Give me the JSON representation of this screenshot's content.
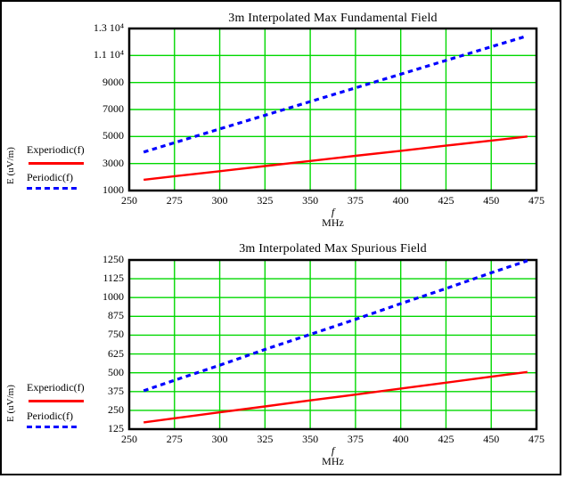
{
  "page": {
    "background": "#ffffff",
    "border_color": "#000000"
  },
  "colors": {
    "grid": "#00d800",
    "frame": "#000000",
    "text": "#000000",
    "experiodic": "#ff0000",
    "periodic": "#0000ff"
  },
  "chart_data": [
    {
      "type": "line",
      "title": "3m Interpolated Max Fundamental Field",
      "xlabel": "f (MHz)",
      "x_variable": "f",
      "x_unit": "MHz",
      "ylabel": "E (uV/m)",
      "grid": true,
      "legend_position": "left",
      "xlim": [
        250,
        475
      ],
      "ylim": [
        1000,
        13000
      ],
      "x_tick_values": [
        250,
        275,
        300,
        325,
        350,
        375,
        400,
        425,
        450,
        475
      ],
      "x_tick_labels": [
        "250",
        "275",
        "300",
        "325",
        "350",
        "375",
        "400",
        "425",
        "450",
        "475"
      ],
      "y_tick_values": [
        13000,
        11000,
        9000,
        7000,
        5000,
        3000,
        1000
      ],
      "y_tick_labels": [
        "1.3 10⁴",
        "1.1 10⁴",
        "9000",
        "7000",
        "5000",
        "3000",
        "1000"
      ],
      "x": [
        258,
        275,
        300,
        325,
        350,
        375,
        400,
        425,
        450,
        470
      ],
      "series": [
        {
          "name": "Experiodic(f)",
          "color": "#ff0000",
          "style": "solid",
          "values": [
            1800,
            2060,
            2430,
            2810,
            3190,
            3570,
            3940,
            4320,
            4700,
            5000
          ]
        },
        {
          "name": "Periodic(f)",
          "color": "#0000ff",
          "style": "dashed",
          "values": [
            3850,
            4540,
            5560,
            6570,
            7590,
            8600,
            9620,
            10630,
            11650,
            12450
          ]
        }
      ]
    },
    {
      "type": "line",
      "title": "3m Interpolated Max Spurious Field",
      "xlabel": "f (MHz)",
      "x_variable": "f",
      "x_unit": "MHz",
      "ylabel": "E (uV/m)",
      "grid": true,
      "legend_position": "left",
      "xlim": [
        250,
        475
      ],
      "ylim": [
        125,
        1250
      ],
      "x_tick_values": [
        250,
        275,
        300,
        325,
        350,
        375,
        400,
        425,
        450,
        475
      ],
      "x_tick_labels": [
        "250",
        "275",
        "300",
        "325",
        "350",
        "375",
        "400",
        "425",
        "450",
        "475"
      ],
      "y_tick_values": [
        1250,
        1125,
        1000,
        875,
        750,
        625,
        500,
        375,
        250,
        125
      ],
      "y_tick_labels": [
        "1250",
        "1125",
        "1000",
        "875",
        "750",
        "625",
        "500",
        "375",
        "250",
        "125"
      ],
      "x": [
        258,
        275,
        300,
        325,
        350,
        375,
        400,
        425,
        450,
        470
      ],
      "series": [
        {
          "name": "Experiodic(f)",
          "color": "#ff0000",
          "style": "solid",
          "values": [
            170,
            197,
            237,
            276,
            316,
            355,
            395,
            434,
            474,
            505
          ]
        },
        {
          "name": "Periodic(f)",
          "color": "#0000ff",
          "style": "dashed",
          "values": [
            380,
            450,
            550,
            655,
            755,
            855,
            960,
            1060,
            1165,
            1245
          ]
        }
      ]
    }
  ]
}
